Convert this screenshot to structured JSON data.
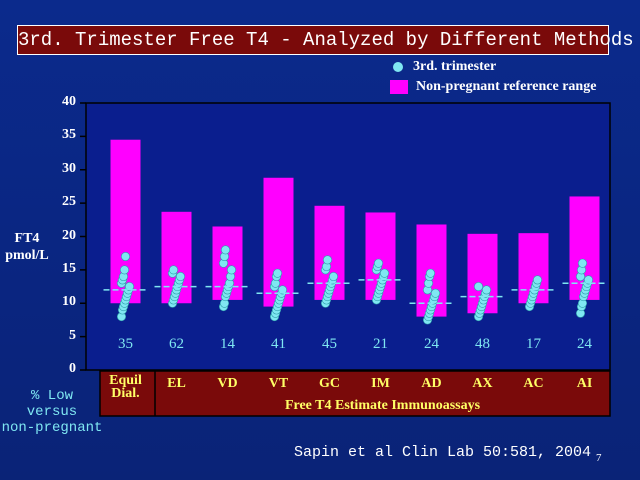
{
  "slide": {
    "title": "3rd. Trimester Free T4 - Analyzed by Different Methods",
    "y_axis_label_line1": "FT4",
    "y_axis_label_line2": "pmol/L",
    "pct_label_lines": [
      "% Low",
      "versus",
      "non-pregnant"
    ],
    "citation": "Sapin et al Clin Lab 50:581, 2004",
    "page_number": "7",
    "colors": {
      "bar": "#ff00ff",
      "dot": "#7fe7f2",
      "median": "#7fe7f2",
      "plot_bg": "#0a1e8e",
      "label_box": "#7a0a0a"
    }
  },
  "chart_data": {
    "type": "bar",
    "legend": [
      {
        "label": "3rd. trimester",
        "marker": "dot"
      },
      {
        "label": "Non-pregnant reference range",
        "marker": "square"
      }
    ],
    "legend_position": "top-right",
    "y_ticks": [
      0,
      5,
      10,
      15,
      20,
      25,
      30,
      35,
      40
    ],
    "ylim": [
      0,
      40
    ],
    "group_label": "Free T4 Estimate Immunoassays",
    "categories": [
      {
        "label_lines": [
          "Equil",
          "Dial."
        ],
        "range": [
          10,
          34.5
        ],
        "median": 12,
        "pct_low": "35",
        "dots": [
          8,
          9,
          9.5,
          10,
          10.5,
          11,
          11.5,
          12,
          12.5,
          13,
          13.5,
          14,
          15,
          17
        ]
      },
      {
        "label_lines": [
          "EL"
        ],
        "range": [
          10,
          23.7
        ],
        "median": 12.5,
        "pct_low": "62",
        "dots": [
          10,
          10.5,
          11,
          11.5,
          12,
          12.5,
          13,
          13.5,
          14,
          14.5,
          15
        ]
      },
      {
        "label_lines": [
          "VD"
        ],
        "range": [
          10.5,
          21.5
        ],
        "median": 12.5,
        "pct_low": "14",
        "dots": [
          9.5,
          10,
          11,
          11.5,
          12,
          12.5,
          13,
          14,
          15,
          16,
          17,
          18
        ]
      },
      {
        "label_lines": [
          "VT"
        ],
        "range": [
          9.5,
          28.8
        ],
        "median": 11.5,
        "pct_low": "41",
        "dots": [
          8,
          8.5,
          9,
          9.5,
          10,
          10.5,
          11,
          11.5,
          12,
          12.5,
          13,
          14,
          14.5
        ]
      },
      {
        "label_lines": [
          "GC"
        ],
        "range": [
          10.5,
          24.6
        ],
        "median": 13,
        "pct_low": "45",
        "dots": [
          10,
          10.5,
          11,
          11.5,
          12,
          12.5,
          13,
          13.5,
          14,
          15,
          15.5,
          16.5
        ]
      },
      {
        "label_lines": [
          "IM"
        ],
        "range": [
          10.5,
          23.6
        ],
        "median": 13.5,
        "pct_low": "21",
        "dots": [
          10.5,
          11,
          11.5,
          12,
          12.5,
          13,
          13.5,
          14,
          14.5,
          15,
          15.5,
          16
        ]
      },
      {
        "label_lines": [
          "AD"
        ],
        "range": [
          8,
          21.8
        ],
        "median": 10,
        "pct_low": "24",
        "dots": [
          7.5,
          8,
          8.5,
          9,
          9.5,
          10,
          10.5,
          11,
          11.5,
          12,
          13,
          14,
          14.5
        ]
      },
      {
        "label_lines": [
          "AX"
        ],
        "range": [
          8.5,
          20.4
        ],
        "median": 11,
        "pct_low": "48",
        "dots": [
          8,
          8.5,
          9,
          9.5,
          10,
          10.5,
          11,
          11.5,
          12,
          12.5
        ]
      },
      {
        "label_lines": [
          "AC"
        ],
        "range": [
          10,
          20.5
        ],
        "median": 12,
        "pct_low": "17",
        "dots": [
          9.5,
          10,
          10.5,
          11,
          11.5,
          12,
          12.5,
          13,
          13.5
        ]
      },
      {
        "label_lines": [
          "AI"
        ],
        "range": [
          10.5,
          26
        ],
        "median": 13,
        "pct_low": "24",
        "dots": [
          8.5,
          9.5,
          10,
          11,
          11.5,
          12,
          12.5,
          13,
          13.5,
          14,
          15,
          16
        ]
      }
    ]
  }
}
